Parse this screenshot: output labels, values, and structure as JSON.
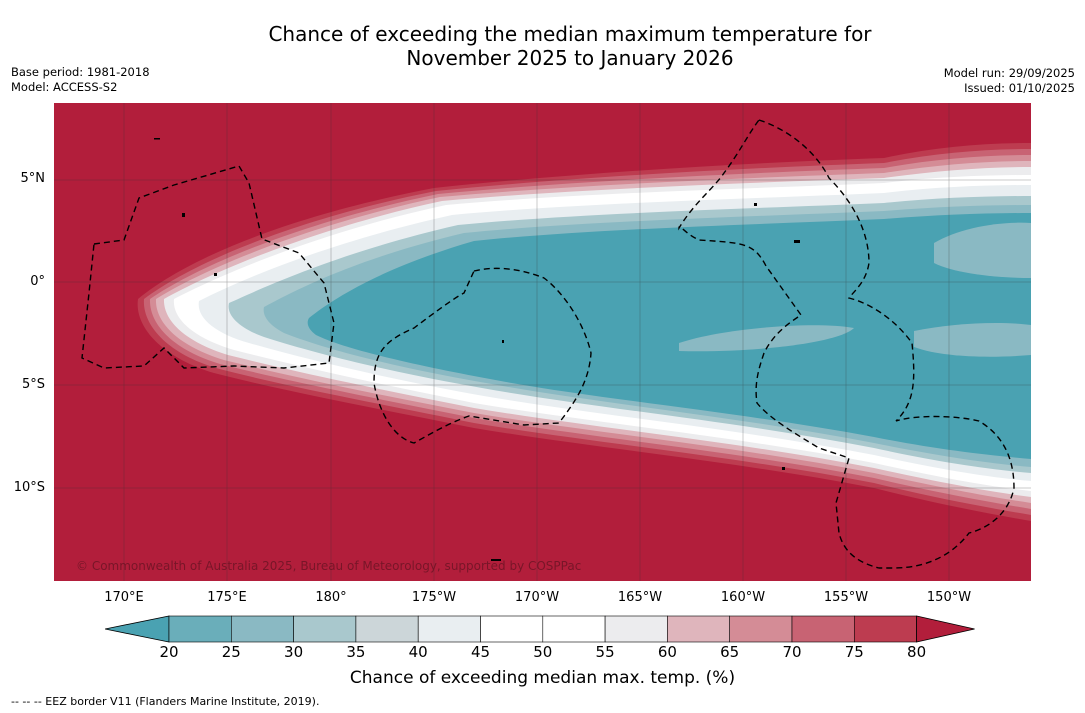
{
  "title": {
    "line1": "Chance of exceeding the median maximum temperature for",
    "line2": "November 2025 to January 2026"
  },
  "meta_left": {
    "base_period": "Base period: 1981-2018",
    "model": "Model: ACCESS-S2"
  },
  "meta_right": {
    "model_run": "Model run: 29/09/2025",
    "issued": "Issued: 01/10/2025"
  },
  "map": {
    "lat_labels": [
      "5°N",
      "0°",
      "5°S",
      "10°S"
    ],
    "lon_labels": [
      "170°E",
      "175°E",
      "180°",
      "175°W",
      "170°W",
      "165°W",
      "160°W",
      "155°W",
      "150°W"
    ],
    "copyright": "© Commonwealth of Australia 2025, Bureau of Meteorology, supported by COSPPac"
  },
  "colorbar": {
    "ticks": [
      "20",
      "25",
      "30",
      "35",
      "40",
      "45",
      "50",
      "55",
      "60",
      "65",
      "70",
      "75",
      "80"
    ],
    "colors": [
      "#4aa2b2",
      "#6aaeba",
      "#8ab9c3",
      "#a9c8cd",
      "#ccd6d9",
      "#e9eef1",
      "#ffffff",
      "#ffffff",
      "#ececee",
      "#dfb5bc",
      "#d48c96",
      "#c86373",
      "#bd3c50",
      "#b21e3b"
    ],
    "title": "Chance of exceeding median max. temp. (%)"
  },
  "footnote": "--  --  -- EEZ border V11 (Flanders Marine Institute, 2019).",
  "palette": {
    "hot": "#b21e3b",
    "cool": "#4aa2b2"
  }
}
